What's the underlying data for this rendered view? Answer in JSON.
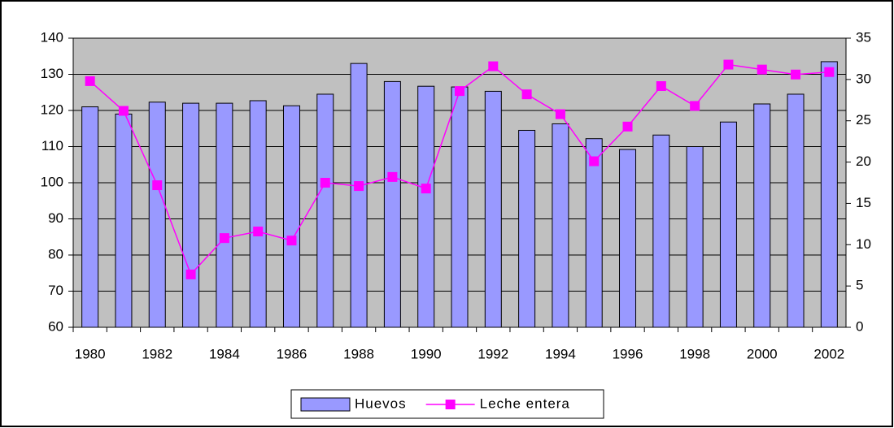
{
  "chart_data": {
    "type": "bar_line",
    "categories": [
      1980,
      null,
      1982,
      null,
      1984,
      null,
      1986,
      null,
      1988,
      null,
      1990,
      null,
      1992,
      null,
      1994,
      null,
      1996,
      null,
      1998,
      null,
      2000,
      null,
      2002
    ],
    "series": [
      {
        "name": "Huevos",
        "type": "bar",
        "color": "#9999ff",
        "axis": "y",
        "values": [
          121,
          119,
          122.3,
          122,
          122,
          122.7,
          121.3,
          124.5,
          133,
          128,
          126.7,
          126.5,
          125.3,
          114.5,
          116.3,
          112.2,
          109.2,
          113.2,
          110,
          116.8,
          121.8,
          124.5,
          133.5
        ]
      },
      {
        "name": "Leche entera",
        "type": "line",
        "color": "#ff00ff",
        "axis": "y2",
        "values": [
          29.8,
          26.2,
          17.2,
          6.4,
          10.8,
          11.6,
          10.5,
          17.5,
          17.1,
          18.2,
          16.8,
          28.6,
          31.6,
          28.2,
          25.8,
          20.1,
          24.3,
          29.2,
          26.8,
          31.8,
          31.2,
          30.6,
          30.9
        ]
      }
    ],
    "ylim": [
      60,
      140
    ],
    "yticks": [
      60,
      70,
      80,
      90,
      100,
      110,
      120,
      130,
      140
    ],
    "y2lim": [
      0,
      35
    ],
    "y2ticks": [
      0,
      5,
      10,
      15,
      20,
      25,
      30,
      35
    ],
    "grid": true,
    "legend": "bottom"
  }
}
